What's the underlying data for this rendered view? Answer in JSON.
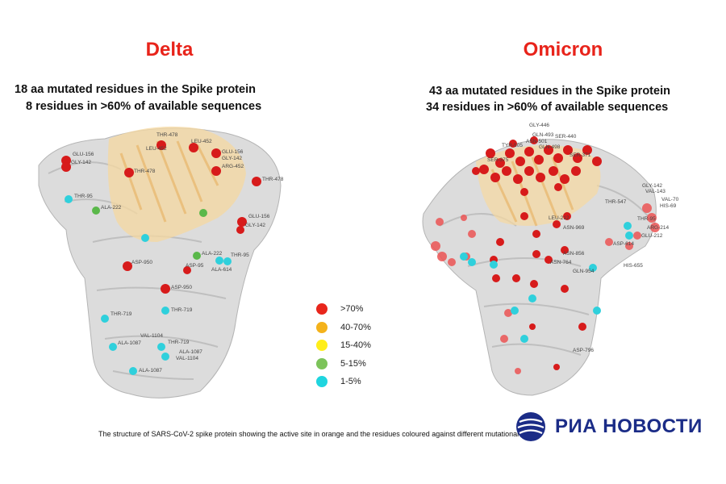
{
  "delta": {
    "title": "Delta",
    "line1": "18 aa mutated residues in the Spike protein",
    "line2": "8 residues in >60% of available sequences",
    "labels": [
      "THR-478",
      "GLU-156",
      "LEU-452",
      "LEU-452",
      "GLY-142",
      "GLU-156",
      "GLY-142",
      "ARG-452",
      "THR-478",
      "THR-478",
      "THR-95",
      "ALA-222",
      "GLU-156",
      "GLY-142",
      "ASP-950",
      "ASP-95",
      "ALA-222",
      "THR-95",
      "ALA-614",
      "ASP-950",
      "THR-719",
      "THR-719",
      "VAL-1104",
      "ALA-1087",
      "THR-719",
      "ALA-1087",
      "VAL-1104",
      "ALA-1087"
    ]
  },
  "omicron": {
    "title": "Omicron",
    "line1": "43 aa mutated residues in the Spike protein",
    "line2": "34 residues in >60% of available sequences",
    "labels": [
      "GLY-446",
      "GLN-493",
      "SER-440",
      "ASN-501",
      "GLN-498",
      "TYR-505",
      "SER-371",
      "SER-375",
      "THR-547",
      "LEU-212",
      "ASN-969",
      "GLY-142",
      "VAL-143",
      "VAL-70",
      "HIS-69",
      "THR-95",
      "ARG-214",
      "GLU-212",
      "ASP-614",
      "ASN-856",
      "ASN-764",
      "GLN-954",
      "HIS-655",
      "ASP-796"
    ]
  },
  "legend": {
    "items": [
      {
        "label": ">70%",
        "color": "#e8261c"
      },
      {
        "label": "40-70%",
        "color": "#f4b21b"
      },
      {
        "label": "15-40%",
        "color": "#ffee1a"
      },
      {
        "label": "5-15%",
        "color": "#7cc35a"
      },
      {
        "label": "1-5%",
        "color": "#1fd5df"
      }
    ]
  },
  "caption": "The structure of SARS-CoV-2 spike protein showing the active site in orange and the residues coloured against different mutational rate",
  "logo": {
    "text": "РИА НОВОСТИ",
    "color": "#1b2c87"
  }
}
